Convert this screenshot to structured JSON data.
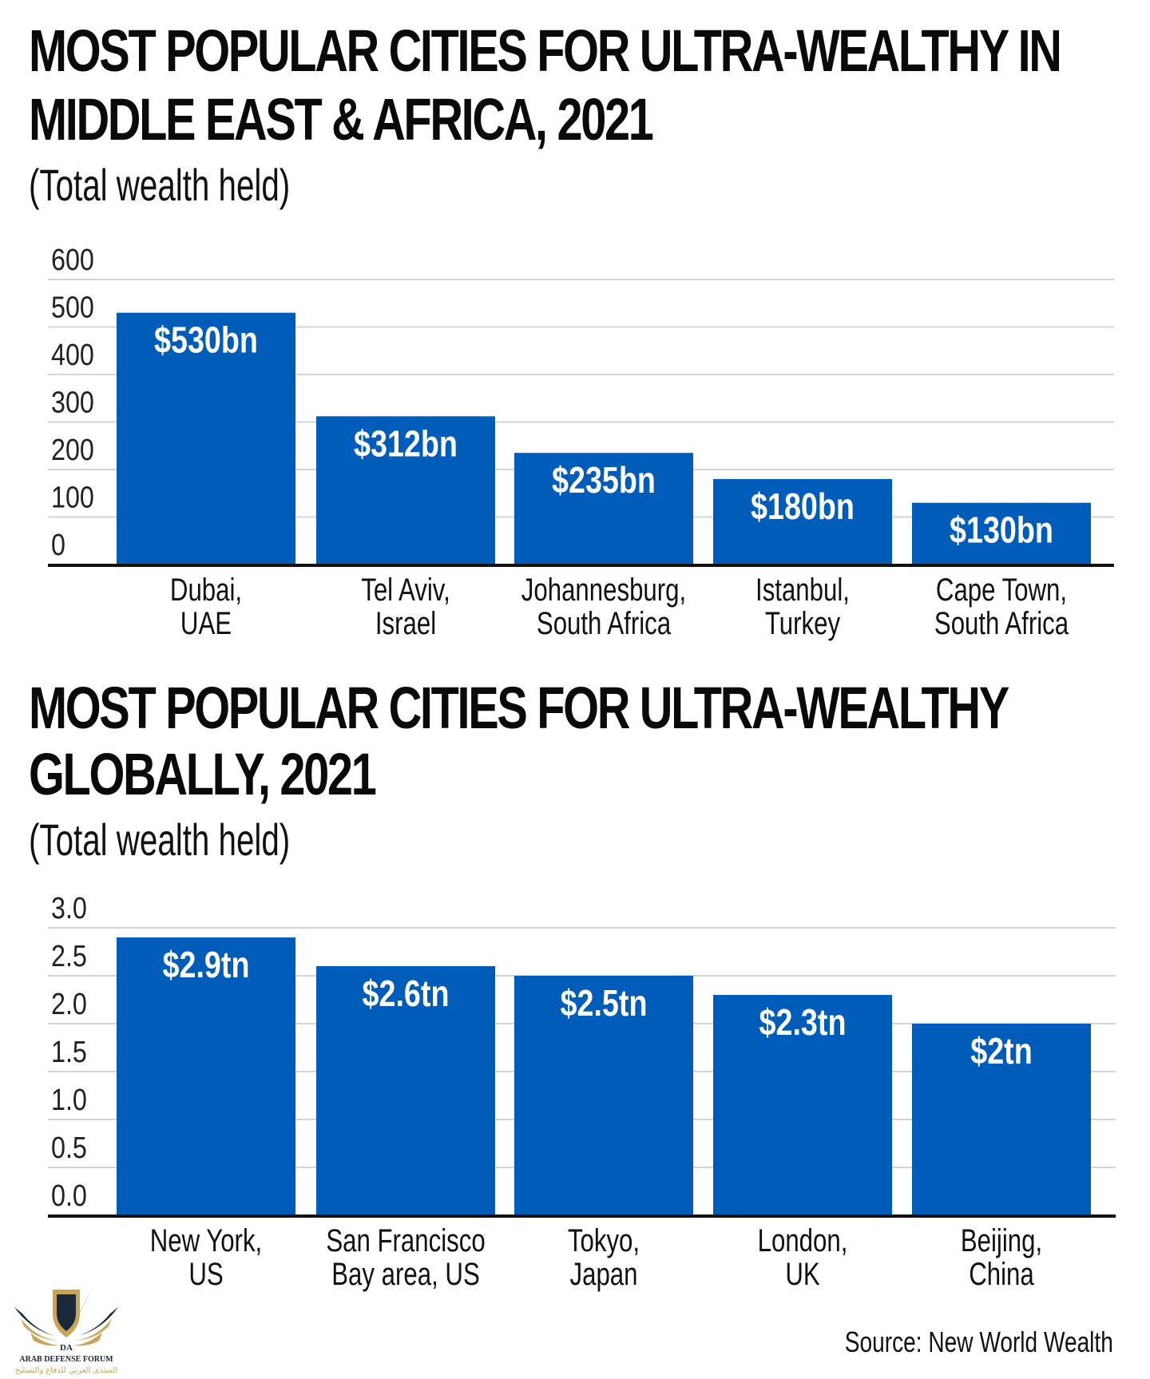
{
  "chart_data": [
    {
      "type": "bar",
      "title": "MOST POPULAR CITIES FOR ULTRA-WEALTHY IN MIDDLE EAST & AFRICA, 2021",
      "title_lines": [
        "MOST POPULAR CITIES FOR ULTRA-WEALTHY IN",
        "MIDDLE EAST & AFRICA, 2021"
      ],
      "subtitle": "(Total wealth held)",
      "categories": [
        "Dubai, UAE",
        "Tel Aviv, Israel",
        "Johannesburg, South Africa",
        "Istanbul, Turkey",
        "Cape Town, South Africa"
      ],
      "category_lines": [
        [
          "Dubai,",
          "UAE"
        ],
        [
          "Tel Aviv,",
          "Israel"
        ],
        [
          "Johannesburg,",
          "South Africa"
        ],
        [
          "Istanbul,",
          "Turkey"
        ],
        [
          "Cape Town,",
          "South Africa"
        ]
      ],
      "values": [
        530,
        312,
        235,
        180,
        130
      ],
      "data_labels": [
        "$530bn",
        "$312bn",
        "$235bn",
        "$180bn",
        "$130bn"
      ],
      "unit": "USD billions",
      "xlabel": "",
      "ylabel": "",
      "ylim": [
        0,
        600
      ],
      "yticks": [
        0,
        100,
        200,
        300,
        400,
        500,
        600
      ],
      "ytick_labels": [
        "0",
        "100",
        "200",
        "300",
        "400",
        "500",
        "600"
      ],
      "grid": true,
      "bar_color": "#005cb9"
    },
    {
      "type": "bar",
      "title": "MOST POPULAR CITIES FOR ULTRA-WEALTHY GLOBALLY, 2021",
      "title_lines": [
        "MOST POPULAR CITIES FOR ULTRA-WEALTHY",
        "GLOBALLY, 2021"
      ],
      "subtitle": "(Total wealth held)",
      "categories": [
        "New York, US",
        "San Francisco Bay area, US",
        "Tokyo, Japan",
        "London, UK",
        "Beijing, China"
      ],
      "category_lines": [
        [
          "New York,",
          "US"
        ],
        [
          "San Francisco",
          "Bay area, US"
        ],
        [
          "Tokyo,",
          "Japan"
        ],
        [
          "London,",
          "UK"
        ],
        [
          "Beijing,",
          "China"
        ]
      ],
      "values": [
        2.9,
        2.6,
        2.5,
        2.3,
        2.0
      ],
      "data_labels": [
        "$2.9tn",
        "$2.6tn",
        "$2.5tn",
        "$2.3tn",
        "$2tn"
      ],
      "unit": "USD trillions",
      "xlabel": "",
      "ylabel": "",
      "ylim": [
        0,
        3.0
      ],
      "yticks": [
        0,
        0.5,
        1.0,
        1.5,
        2.0,
        2.5,
        3.0
      ],
      "ytick_labels": [
        "0.0",
        "0.5",
        "1.0",
        "1.5",
        "2.0",
        "2.5",
        "3.0"
      ],
      "grid": true,
      "bar_color": "#005cb9"
    }
  ],
  "footer": {
    "source": "Source: New World Wealth",
    "logo_text_en": "ARAB DEFENSE FORUM",
    "logo_text_ar": "المنتدى العربي للدفاع والتسليح",
    "logo_monogram": "DA",
    "logo_icon": "shield-wings-icon"
  },
  "colors": {
    "bar": "#005cb9",
    "grid": "#d4d4d4",
    "axis": "#111111",
    "logo_gold": "#c9a55a",
    "logo_dark": "#1b2a3a"
  }
}
